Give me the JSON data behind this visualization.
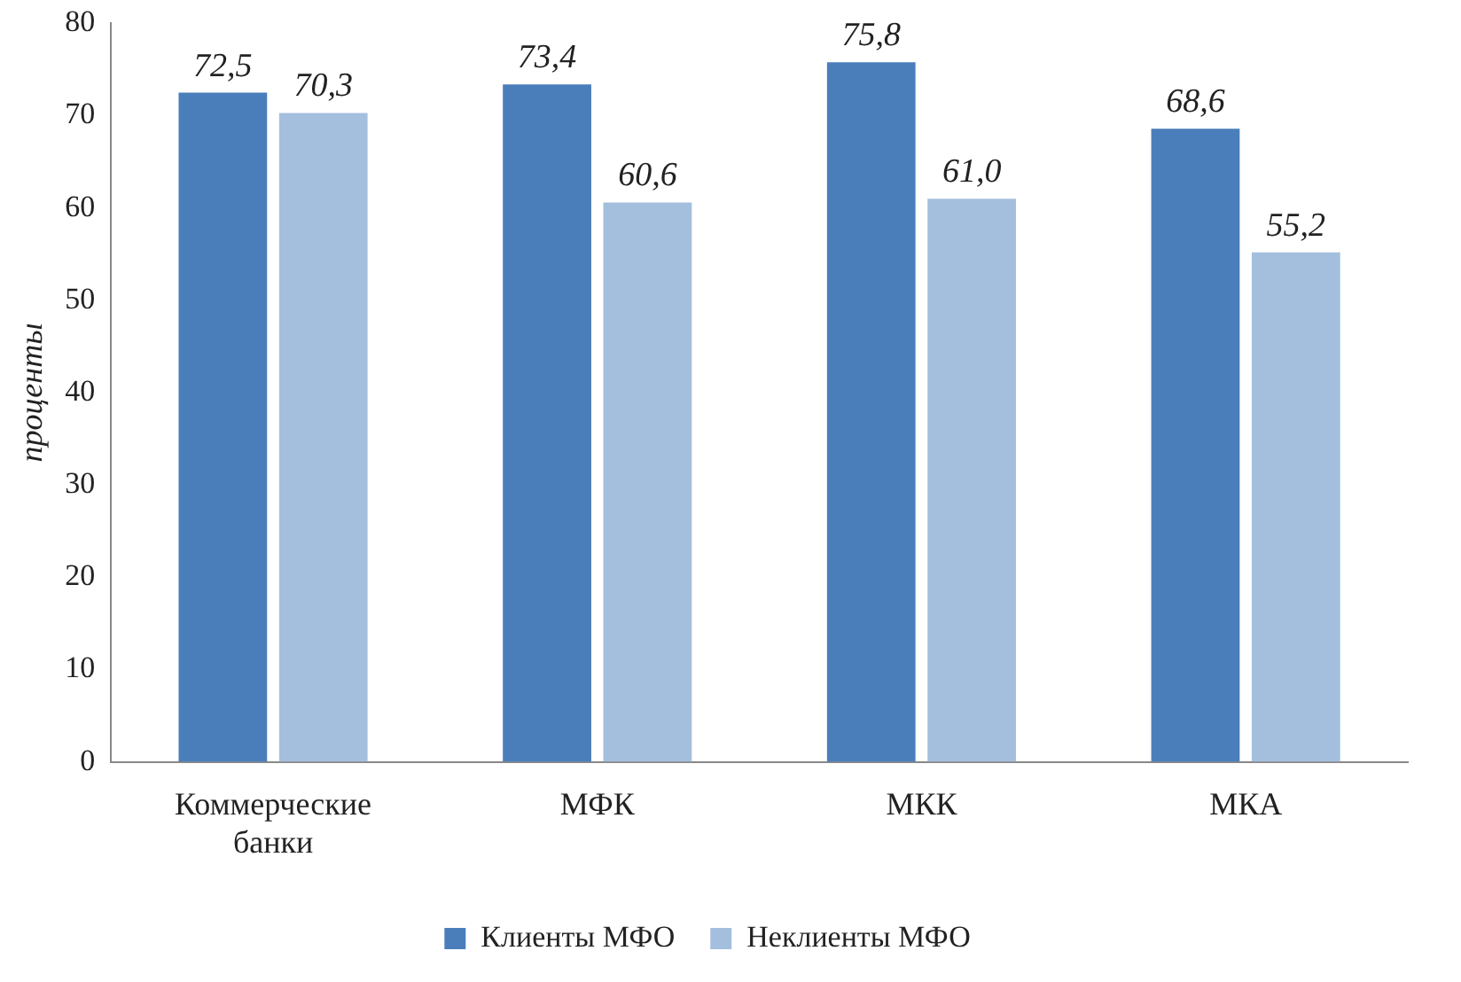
{
  "chart_data": {
    "type": "bar",
    "ylabel": "проценты",
    "categories": [
      "Коммерческие банки",
      "МФК",
      "МКК",
      "МКА"
    ],
    "series": [
      {
        "name": "Клиенты МФО",
        "color": "#4a7ebb",
        "values": [
          72.5,
          73.4,
          75.8,
          68.6
        ],
        "value_labels": [
          "72,5",
          "73,4",
          "75,8",
          "68,6"
        ]
      },
      {
        "name": "Неклиенты МФО",
        "color": "#a4bfdd",
        "values": [
          70.3,
          60.6,
          61.0,
          55.2
        ],
        "value_labels": [
          "70,3",
          "60,6",
          "61,0",
          "55,2"
        ]
      }
    ],
    "ylim": [
      0,
      80
    ],
    "yticks": [
      0,
      10,
      20,
      30,
      40,
      50,
      60,
      70,
      80
    ],
    "legend": "bottom",
    "grid": false
  }
}
